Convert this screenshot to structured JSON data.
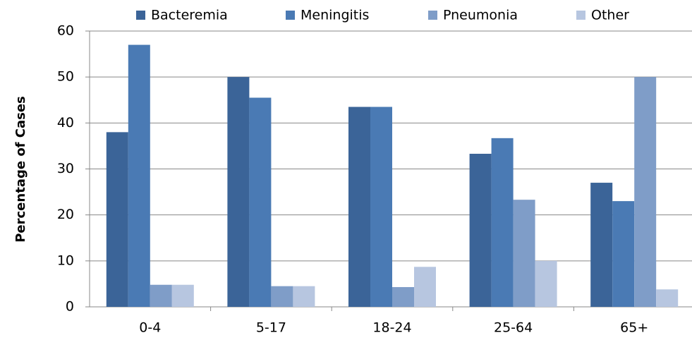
{
  "chart_data": {
    "type": "bar",
    "y_label": "Percentage of Cases",
    "categories": [
      "0-4",
      "5-17",
      "18-24",
      "25-64",
      "65+"
    ],
    "series": [
      {
        "name": "Bacteremia",
        "color": "#3b6498",
        "values": [
          38,
          50,
          43.5,
          33.3,
          27
        ]
      },
      {
        "name": "Meningitis",
        "color": "#4a7ab4",
        "values": [
          57,
          45.5,
          43.5,
          36.7,
          23
        ]
      },
      {
        "name": "Pneumonia",
        "color": "#7f9dc8",
        "values": [
          4.8,
          4.5,
          4.3,
          23.3,
          50
        ]
      },
      {
        "name": "Other",
        "color": "#b7c6e0",
        "values": [
          4.8,
          4.5,
          8.7,
          10,
          3.8
        ]
      }
    ],
    "ylim": [
      0,
      60
    ],
    "yticks": [
      0,
      10,
      20,
      30,
      40,
      50,
      60
    ],
    "grid": true,
    "legend": "top"
  }
}
